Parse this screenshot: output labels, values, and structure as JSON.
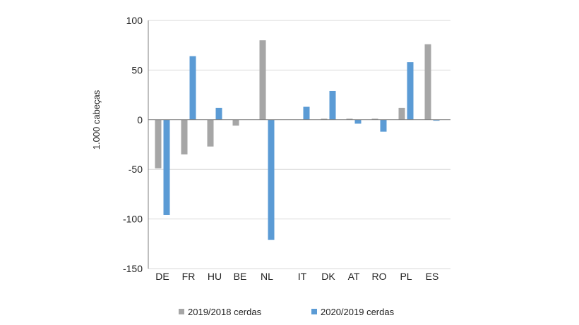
{
  "chart_data": {
    "type": "bar",
    "categories": [
      "DE",
      "FR",
      "HU",
      "BE",
      "NL",
      "IT",
      "DK",
      "AT",
      "RO",
      "PL",
      "ES"
    ],
    "series": [
      {
        "name": "2019/2018 cerdas",
        "color": "#a6a6a6",
        "values": [
          -49,
          -35,
          -27,
          -6,
          80,
          0,
          1,
          1,
          1,
          12,
          76
        ]
      },
      {
        "name": "2020/2019 cerdas",
        "color": "#5b9bd5",
        "values": [
          -96,
          64,
          12,
          0,
          -121,
          13,
          29,
          -4,
          -12,
          58,
          -1
        ]
      }
    ],
    "title": "",
    "xlabel": "",
    "ylabel": "1.000 cabeças",
    "ylim": [
      -150,
      100
    ],
    "yticks": [
      100,
      50,
      0,
      -50,
      -100,
      -150
    ],
    "grid": true,
    "legend_position": "bottom"
  }
}
